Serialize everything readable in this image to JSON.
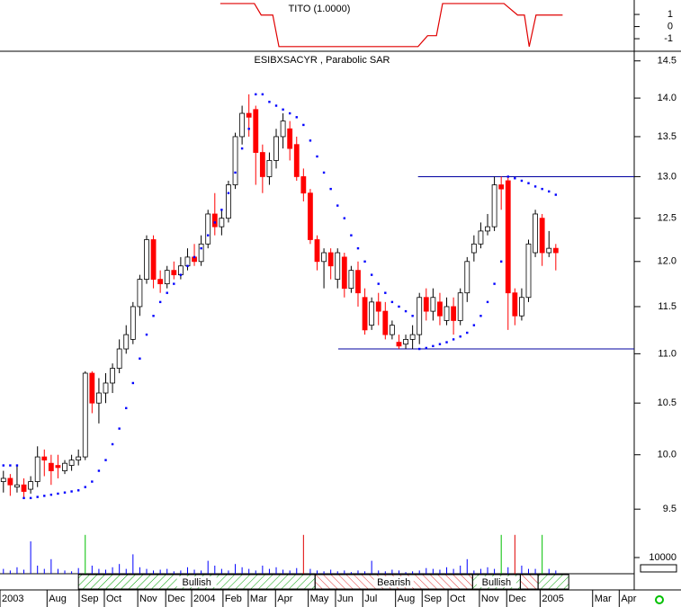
{
  "chart_data": [
    {
      "type": "line",
      "title": "TITO (1.0000)",
      "x": [
        31.8,
        36.8,
        37.8,
        39.5,
        40.4,
        60.8,
        62.2,
        63.5,
        64.4,
        73.4,
        75.4,
        76.4,
        77.1,
        78.1,
        82
      ],
      "values": [
        1.9,
        1.9,
        0.95,
        0.95,
        -1.65,
        -1.65,
        -0.75,
        -0.75,
        1.9,
        1.9,
        0.95,
        0.95,
        -1.65,
        0.95,
        0.95
      ],
      "color": "#e00000",
      "ylim": [
        -1.96,
        2.19
      ],
      "yticks": [
        1,
        0,
        -1
      ]
    },
    {
      "type": "candlestick",
      "title": "ESIBXSACYR , Parabolic SAR",
      "open": [
        9.75,
        9.78,
        9.7,
        9.72,
        9.68,
        9.75,
        9.98,
        9.92,
        9.9,
        9.85,
        9.9,
        9.95,
        9.98,
        10.8,
        10.5,
        10.6,
        10.7,
        10.85,
        11.05,
        11.15,
        11.5,
        11.8,
        12.25,
        11.8,
        11.75,
        11.9,
        11.85,
        11.95,
        12.05,
        12.0,
        12.2,
        12.55,
        12.4,
        12.5,
        12.9,
        13.5,
        13.8,
        13.85,
        13.3,
        13.0,
        13.2,
        13.5,
        13.6,
        13.4,
        13.0,
        12.8,
        12.25,
        12.0,
        12.1,
        11.8,
        12.05,
        11.7,
        11.9,
        11.6,
        11.3,
        11.55,
        11.45,
        11.2,
        11.12,
        11.1,
        11.15,
        11.2,
        11.6,
        11.45,
        11.55,
        11.35,
        11.5,
        11.35,
        11.65,
        12.1,
        12.2,
        12.35,
        12.4,
        12.9,
        12.95,
        11.65,
        11.4,
        11.6,
        12.1,
        12.5,
        12.1,
        12.15
      ],
      "high": [
        9.85,
        9.82,
        9.9,
        9.78,
        9.8,
        10.08,
        10.05,
        10.0,
        10.0,
        9.95,
        10.0,
        10.05,
        10.82,
        10.82,
        10.75,
        10.8,
        10.9,
        11.15,
        11.3,
        11.55,
        11.85,
        12.3,
        12.3,
        11.9,
        11.95,
        12.0,
        12.05,
        12.15,
        12.2,
        12.3,
        12.6,
        12.8,
        12.6,
        12.95,
        13.55,
        13.9,
        14.05,
        13.9,
        13.4,
        13.3,
        13.6,
        13.8,
        13.7,
        13.5,
        13.1,
        12.85,
        12.3,
        12.15,
        12.15,
        12.15,
        12.1,
        11.95,
        12.0,
        11.7,
        11.6,
        11.65,
        11.55,
        11.35,
        11.2,
        11.2,
        11.3,
        11.65,
        11.7,
        11.7,
        11.65,
        11.6,
        11.6,
        11.7,
        12.05,
        12.3,
        12.45,
        12.55,
        13.0,
        13.0,
        13.0,
        11.7,
        11.7,
        12.25,
        12.6,
        12.55,
        12.35,
        12.2
      ],
      "low": [
        9.65,
        9.62,
        9.65,
        9.6,
        9.64,
        9.7,
        9.8,
        9.72,
        9.78,
        9.82,
        9.85,
        9.9,
        9.95,
        10.4,
        10.3,
        10.5,
        10.6,
        10.8,
        11.0,
        11.1,
        11.4,
        11.75,
        11.7,
        11.65,
        11.7,
        11.8,
        11.8,
        11.9,
        11.95,
        11.95,
        12.15,
        12.3,
        12.3,
        12.45,
        12.85,
        13.4,
        13.5,
        12.9,
        12.8,
        12.9,
        13.1,
        13.35,
        13.2,
        12.95,
        12.7,
        12.2,
        11.9,
        11.7,
        11.8,
        11.7,
        11.6,
        11.65,
        11.5,
        11.2,
        11.25,
        11.3,
        11.15,
        11.15,
        11.05,
        11.05,
        11.05,
        11.1,
        11.35,
        11.35,
        11.3,
        11.3,
        11.2,
        11.3,
        11.55,
        12.0,
        12.15,
        12.3,
        12.35,
        12.6,
        11.25,
        11.3,
        11.35,
        11.55,
        12.05,
        11.95,
        12.05,
        11.9
      ],
      "close": [
        9.78,
        9.72,
        9.72,
        9.66,
        9.75,
        9.98,
        9.95,
        9.85,
        9.88,
        9.92,
        9.95,
        9.98,
        10.8,
        10.5,
        10.6,
        10.7,
        10.85,
        11.05,
        11.2,
        11.5,
        11.8,
        12.25,
        11.8,
        11.75,
        11.9,
        11.85,
        11.95,
        12.05,
        12.0,
        12.2,
        12.55,
        12.4,
        12.5,
        12.9,
        13.5,
        13.8,
        13.75,
        13.3,
        13.0,
        13.2,
        13.5,
        13.7,
        13.35,
        13.0,
        12.8,
        12.25,
        12.0,
        12.1,
        11.95,
        12.1,
        11.7,
        11.9,
        11.65,
        11.25,
        11.55,
        11.45,
        11.2,
        11.3,
        11.08,
        11.15,
        11.2,
        11.6,
        11.45,
        11.6,
        11.4,
        11.5,
        11.35,
        11.65,
        12.0,
        12.2,
        12.35,
        12.4,
        12.9,
        12.85,
        11.65,
        11.4,
        11.6,
        12.2,
        12.55,
        12.1,
        12.15,
        12.1
      ],
      "up_color": "#ffffff",
      "down_color": "#ff0000",
      "sar": {
        "color": "#0000ff",
        "values": [
          9.9,
          9.9,
          9.9,
          9.6,
          9.6,
          9.61,
          9.62,
          9.63,
          9.64,
          9.65,
          9.66,
          9.67,
          9.7,
          9.75,
          9.85,
          9.95,
          10.1,
          10.25,
          10.45,
          10.7,
          10.95,
          11.2,
          11.4,
          11.55,
          11.65,
          11.75,
          11.85,
          11.95,
          12.05,
          12.15,
          12.3,
          12.45,
          12.6,
          12.8,
          13.05,
          13.35,
          13.6,
          14.05,
          14.05,
          13.95,
          13.9,
          13.85,
          13.8,
          13.75,
          13.65,
          13.45,
          13.25,
          13.05,
          12.85,
          12.65,
          12.5,
          12.3,
          12.15,
          12.0,
          11.85,
          11.75,
          11.65,
          11.55,
          11.5,
          11.45,
          11.4,
          11.05,
          11.06,
          11.08,
          11.1,
          11.12,
          11.15,
          11.18,
          11.22,
          11.3,
          11.4,
          11.55,
          11.75,
          12.0,
          13.0,
          12.98,
          12.95,
          12.92,
          12.88,
          12.85,
          12.82,
          12.78
        ]
      },
      "hlines": [
        {
          "value": 13.0,
          "start": 60.8
        },
        {
          "value": 11.05,
          "start": 49.1
        }
      ],
      "hline_color": "#0000a0",
      "xlim": [
        -0.5,
        92.5
      ],
      "ylim": [
        9.31,
        14.62
      ],
      "log_scale": true,
      "yticks": [
        14.5,
        {
          "value": 14,
          "label": "14.0"
        },
        13.5,
        {
          "value": 13,
          "label": "13.0"
        },
        12.5,
        {
          "value": 12,
          "label": "12.0"
        },
        11.5,
        {
          "value": 11,
          "label": "11.0"
        },
        10.5,
        {
          "value": 10,
          "label": "10.0"
        },
        9.5
      ]
    },
    {
      "type": "bar",
      "values": [
        3000,
        2000,
        4000,
        2500,
        20000,
        5000,
        3000,
        9000,
        3000,
        2000,
        1500,
        3500,
        24000,
        5000,
        3000,
        2500,
        4000,
        6000,
        3000,
        12000,
        4000,
        3000,
        2000,
        2500,
        3000,
        1500,
        2000,
        4000,
        2500,
        2000,
        8000,
        5000,
        3000,
        2000,
        6000,
        4000,
        3000,
        2000,
        5000,
        3000,
        4000,
        2500,
        2000,
        3500,
        24000,
        3000,
        2000,
        1500,
        2500,
        1500,
        2000,
        1000,
        2000,
        1500,
        8000,
        2000,
        1500,
        2500,
        2000,
        1000,
        1500,
        2000,
        3500,
        3000,
        2500,
        4000,
        3000,
        5000,
        9000,
        2000,
        3000,
        4000,
        3000,
        24000,
        4000,
        24000,
        5000,
        3000,
        3000,
        24000,
        3000,
        2000
      ],
      "color": "#0000ff",
      "highlights": [
        {
          "index": 12,
          "color": "#00c000"
        },
        {
          "index": 44,
          "color": "#e00000"
        },
        {
          "index": 73,
          "color": "#00c000"
        },
        {
          "index": 75,
          "color": "#e00000"
        },
        {
          "index": 79,
          "color": "#00c000"
        }
      ],
      "ylim": [
        0,
        25000
      ],
      "yticks": [
        10000
      ],
      "signals": [
        {
          "label": "Bullish",
          "start": 11,
          "end": 45.7,
          "color": "#00a000"
        },
        {
          "label": "Bearish",
          "start": 45.7,
          "end": 68.8,
          "color": "#e03030"
        },
        {
          "label": "Bullish",
          "start": 68.8,
          "end": 75.8,
          "color": "#00a000"
        },
        {
          "label": null,
          "start": 75.8,
          "end": 78.4,
          "color": "#e03030"
        },
        {
          "label": null,
          "start": 78.4,
          "end": 82.9,
          "color": "#00a000"
        }
      ],
      "xticks": [
        {
          "value": -0.5,
          "label": "2003"
        },
        {
          "value": 6.4,
          "label": "Aug"
        },
        {
          "value": 11.1,
          "label": "Sep"
        },
        {
          "value": 14.8,
          "label": "Oct"
        },
        {
          "value": 19.7,
          "label": "Nov"
        },
        {
          "value": 23.8,
          "label": "Dec"
        },
        {
          "value": 27.6,
          "label": "2004"
        },
        {
          "value": 32.2,
          "label": "Feb"
        },
        {
          "value": 35.9,
          "label": "Mar"
        },
        {
          "value": 39.9,
          "label": "Apr"
        },
        {
          "value": 44.7,
          "label": "May"
        },
        {
          "value": 48.7,
          "label": "Jun"
        },
        {
          "value": 52.7,
          "label": "Jul"
        },
        {
          "value": 57.5,
          "label": "Aug"
        },
        {
          "value": 61.4,
          "label": "Sep"
        },
        {
          "value": 65.2,
          "label": "Oct"
        },
        {
          "value": 69.8,
          "label": "Nov"
        },
        {
          "value": 73.8,
          "label": "Dec"
        },
        {
          "value": 78.7,
          "label": "2005"
        },
        {
          "value": 86.4,
          "label": "Mar"
        },
        {
          "value": 90.3,
          "label": "Apr"
        }
      ]
    }
  ]
}
